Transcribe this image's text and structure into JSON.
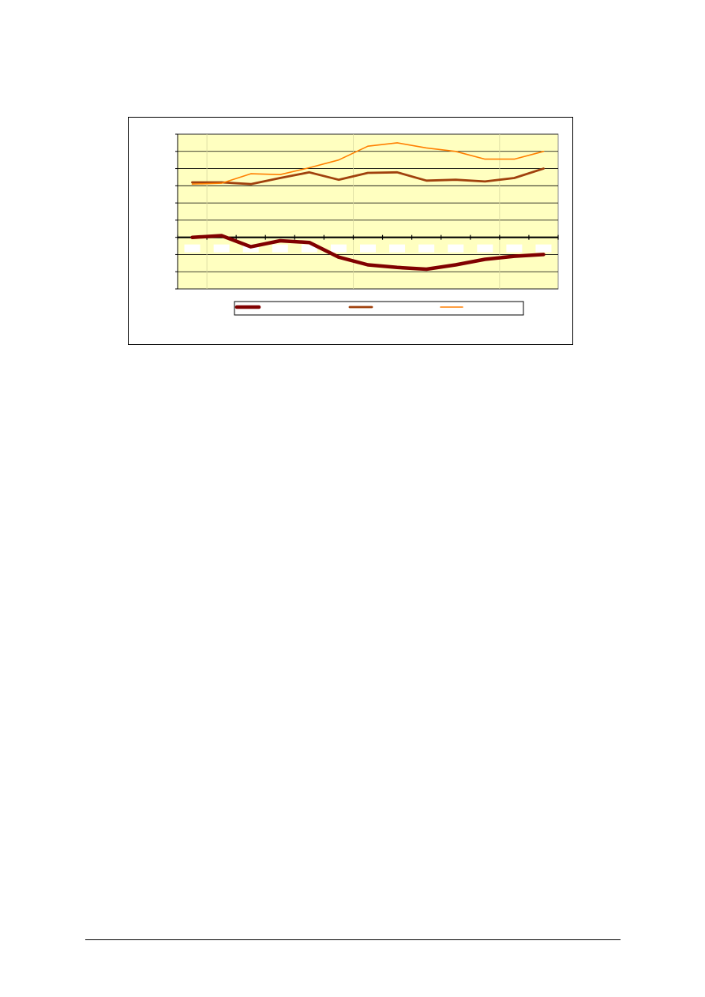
{
  "chart_data": {
    "type": "line",
    "title": "",
    "xlabel": "",
    "ylabel": "",
    "categories": [
      "",
      "",
      "",
      "",
      "",
      "",
      "",
      "",
      "",
      "",
      "",
      "",
      ""
    ],
    "ylim": [
      -3,
      6
    ],
    "y_gridline_step": 1,
    "grid": true,
    "legend_placement": "bottom",
    "colors": {
      "plot_background": "#FFFFC0",
      "gridline": "#000000",
      "label_box": "#FFFFFF"
    },
    "series": [
      {
        "values": [
          0.0,
          0.1,
          -0.55,
          -0.2,
          -0.3,
          -1.15,
          -1.6,
          -1.75,
          -1.85,
          -1.6,
          -1.28,
          -1.1,
          -1.0
        ],
        "color": "#800000",
        "style": "thick"
      },
      {
        "values": [
          3.2,
          3.2,
          3.1,
          3.45,
          3.78,
          3.35,
          3.75,
          3.78,
          3.3,
          3.35,
          3.25,
          3.45,
          4.0
        ],
        "color": "#A0410D",
        "style": "medium"
      },
      {
        "values": [
          3.1,
          3.15,
          3.7,
          3.65,
          4.05,
          4.5,
          5.3,
          5.5,
          5.2,
          5.0,
          4.55,
          4.55,
          5.0
        ],
        "color": "#FF7F00",
        "style": "thin"
      }
    ]
  }
}
